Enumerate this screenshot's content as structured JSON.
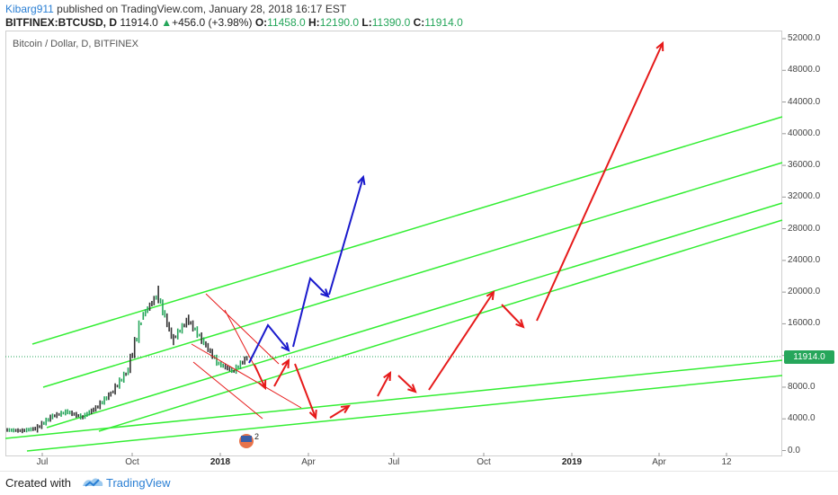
{
  "header": {
    "author": "Kibarg911",
    "published_text": " published on TradingView.com, January 28, 2018 16:17 EST",
    "symbol": "BITFINEX:BTCUSD, D",
    "last": "11914.0",
    "change_arrow": "▲",
    "change": "+456.0 (+3.98%)",
    "o_label": "O:",
    "o_val": "11458.0",
    "h_label": "H:",
    "h_val": "12190.0",
    "l_label": "L:",
    "l_val": "11390.0",
    "c_label": "C:",
    "c_val": "11914.0"
  },
  "chart_title": "Bitcoin / Dollar, D, BITFINEX",
  "price_tag": "11914.0",
  "yticks": [
    "52000.0",
    "48000.0",
    "44000.0",
    "40000.0",
    "36000.0",
    "32000.0",
    "28000.0",
    "24000.0",
    "20000.0",
    "16000.0",
    "12000.0",
    "8000.0",
    "4000.0",
    "0.0"
  ],
  "xticks": [
    {
      "label": "Jul",
      "bold": false
    },
    {
      "label": "Oct",
      "bold": false
    },
    {
      "label": "2018",
      "bold": true
    },
    {
      "label": "Apr",
      "bold": false
    },
    {
      "label": "Jul",
      "bold": false
    },
    {
      "label": "Oct",
      "bold": false
    },
    {
      "label": "2019",
      "bold": true
    },
    {
      "label": "Apr",
      "bold": false
    },
    {
      "label": "12",
      "bold": false
    }
  ],
  "footer": {
    "created_with": "Created with",
    "brand": "TradingView"
  },
  "colors": {
    "channel": "#33ee33",
    "red": "#e61a1a",
    "blue": "#1a1acc",
    "candle_up": "#26a65b",
    "candle_down": "#333333",
    "price_line": "#26a65b"
  },
  "chart_data": {
    "type": "line",
    "title": "Bitcoin / Dollar, D, BITFINEX",
    "ylim": [
      0,
      52000
    ],
    "last_price": 11914.0,
    "series": [
      {
        "values": [
          2600,
          2500,
          2800,
          4300,
          4900,
          4200,
          5500,
          7400,
          10000,
          17000,
          19700,
          14000,
          16500,
          13800,
          11000,
          10000,
          11914
        ]
      }
    ]
  }
}
